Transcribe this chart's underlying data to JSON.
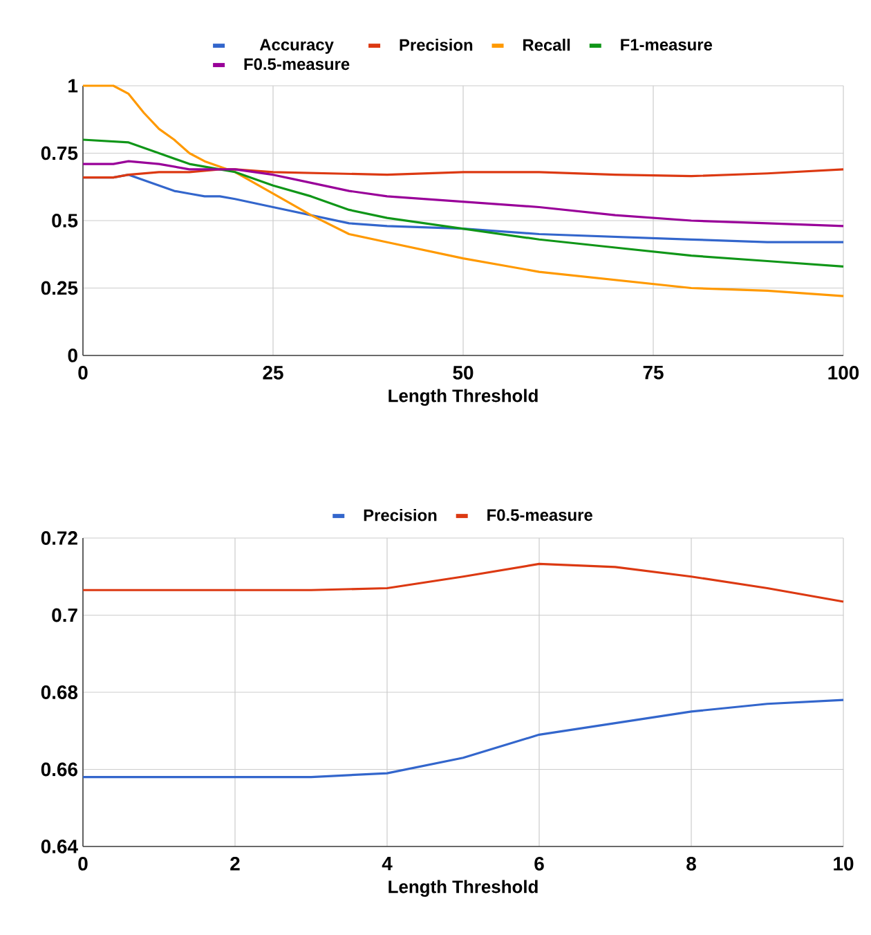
{
  "chart_data": [
    {
      "type": "line",
      "xlabel": "Length Threshold",
      "legend": "top",
      "grid": true,
      "xlim": [
        0,
        100
      ],
      "ylim": [
        0,
        1
      ],
      "xticks": [
        0,
        25,
        50,
        75,
        100
      ],
      "yticks": [
        0,
        0.25,
        0.5,
        0.75,
        1
      ],
      "series": [
        {
          "name": "Accuracy",
          "color": "#3366cc",
          "x": [
            0,
            4,
            6,
            8,
            10,
            12,
            14,
            16,
            18,
            20,
            25,
            30,
            35,
            40,
            50,
            60,
            70,
            80,
            90,
            100
          ],
          "values": [
            0.66,
            0.66,
            0.67,
            0.65,
            0.63,
            0.61,
            0.6,
            0.59,
            0.59,
            0.58,
            0.55,
            0.52,
            0.49,
            0.48,
            0.47,
            0.45,
            0.44,
            0.43,
            0.42,
            0.42
          ]
        },
        {
          "name": "Precision",
          "color": "#dc3912",
          "x": [
            0,
            4,
            6,
            10,
            14,
            18,
            20,
            25,
            40,
            50,
            60,
            70,
            80,
            90,
            100
          ],
          "values": [
            0.66,
            0.66,
            0.67,
            0.68,
            0.68,
            0.69,
            0.69,
            0.68,
            0.67,
            0.68,
            0.68,
            0.67,
            0.665,
            0.675,
            0.69
          ]
        },
        {
          "name": "Recall",
          "color": "#ff9900",
          "x": [
            0,
            4,
            6,
            8,
            10,
            12,
            14,
            16,
            18,
            20,
            25,
            30,
            35,
            40,
            50,
            60,
            70,
            80,
            90,
            100
          ],
          "values": [
            1,
            1,
            0.97,
            0.9,
            0.84,
            0.8,
            0.75,
            0.72,
            0.7,
            0.68,
            0.6,
            0.52,
            0.45,
            0.42,
            0.36,
            0.31,
            0.28,
            0.25,
            0.24,
            0.22
          ]
        },
        {
          "name": "F1-measure",
          "color": "#109618",
          "x": [
            0,
            6,
            8,
            10,
            14,
            18,
            20,
            25,
            30,
            35,
            40,
            50,
            60,
            70,
            80,
            90,
            100
          ],
          "values": [
            0.8,
            0.79,
            0.77,
            0.75,
            0.71,
            0.69,
            0.68,
            0.63,
            0.59,
            0.54,
            0.51,
            0.47,
            0.43,
            0.4,
            0.37,
            0.35,
            0.33
          ]
        },
        {
          "name": "F0.5-measure",
          "color": "#990099",
          "x": [
            0,
            4,
            6,
            10,
            14,
            18,
            20,
            25,
            30,
            35,
            40,
            50,
            60,
            70,
            80,
            90,
            100
          ],
          "values": [
            0.71,
            0.71,
            0.72,
            0.71,
            0.69,
            0.69,
            0.69,
            0.67,
            0.64,
            0.61,
            0.59,
            0.57,
            0.55,
            0.52,
            0.5,
            0.49,
            0.48
          ]
        }
      ]
    },
    {
      "type": "line",
      "xlabel": "Length Threshold",
      "legend": "top",
      "grid": true,
      "xlim": [
        0,
        10
      ],
      "ylim": [
        0.64,
        0.72
      ],
      "xticks": [
        0,
        2,
        4,
        6,
        8,
        10
      ],
      "yticks": [
        0.64,
        0.66,
        0.68,
        0.7,
        0.72
      ],
      "x": [
        0,
        1,
        2,
        3,
        4,
        5,
        6,
        7,
        8,
        9,
        10
      ],
      "series": [
        {
          "name": "Precision",
          "color": "#3366cc",
          "values": [
            0.658,
            0.658,
            0.658,
            0.658,
            0.659,
            0.663,
            0.669,
            0.672,
            0.675,
            0.677,
            0.678
          ]
        },
        {
          "name": "F0.5-measure",
          "color": "#dc3912",
          "values": [
            0.7065,
            0.7065,
            0.7065,
            0.7065,
            0.707,
            0.71,
            0.7133,
            0.7125,
            0.71,
            0.707,
            0.7035
          ]
        }
      ]
    }
  ]
}
